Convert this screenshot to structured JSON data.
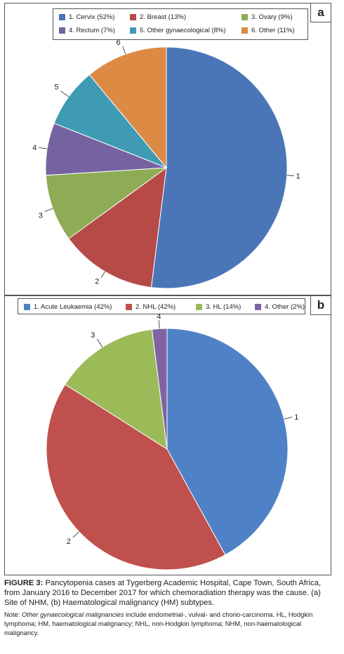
{
  "chart_data": [
    {
      "type": "pie",
      "panel_label": "a",
      "legend": [
        "1. Cervix (52%)",
        "2. Breast (13%)",
        "3. Ovary (9%)",
        "4. Rectum (7%)",
        "5. Other gynaecological (8%)",
        "6. Other (11%)"
      ],
      "slice_labels": [
        "1",
        "2",
        "3",
        "4",
        "5",
        "6"
      ],
      "values": [
        52,
        13,
        9,
        7,
        8,
        11
      ],
      "colors": [
        "#4a76b8",
        "#b54a47",
        "#8eac55",
        "#7562a0",
        "#3e9bb3",
        "#dd8a45"
      ],
      "legend_placement": "top"
    },
    {
      "type": "pie",
      "panel_label": "b",
      "legend": [
        "1. Acute Leukaemia (42%)",
        "2. NHL (42%)",
        "3. HL (14%)",
        "4. Other (2%)"
      ],
      "slice_labels": [
        "1",
        "2",
        "3",
        "4"
      ],
      "values": [
        42,
        42,
        14,
        2
      ],
      "colors": [
        "#4f81c6",
        "#c0504d",
        "#9bbb59",
        "#8064a2"
      ],
      "legend_placement": "top"
    }
  ],
  "caption": {
    "label": "FIGURE 3:",
    "text": "Pancytopenia cases at Tygerberg Academic Hospital, Cape Town, South Africa, from January 2016 to December 2017 for which chemoradiation therapy was the cause. (a) Site of NHM, (b) Haematological malignancy (HM) subtypes."
  },
  "note": {
    "prefix": "Note: ",
    "emphasis": "Other gynaecological malignancies",
    "text": " include endometrial-, vulval- and chorio-carcinoma. HL, Hodgkin lymphoma; HM, haematological malignancy; NHL, non-Hodgkin lymphoma; NHM, non-haematological malignancy."
  }
}
